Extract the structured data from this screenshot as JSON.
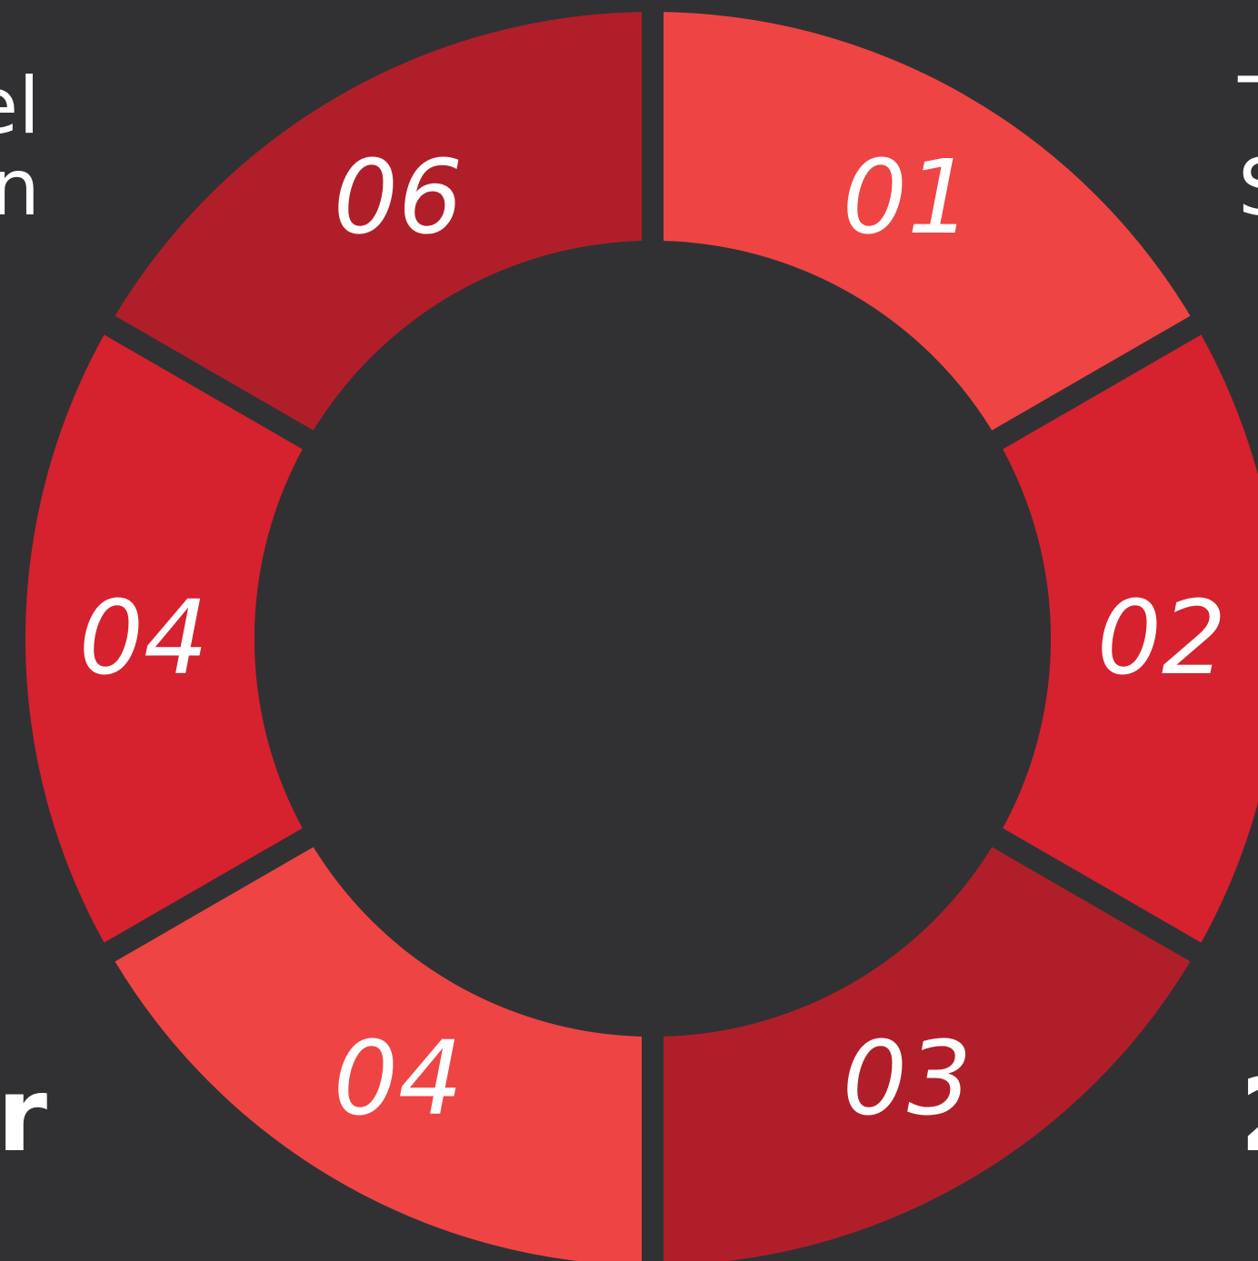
{
  "edge_text": {
    "left_top_line1": "el",
    "left_top_line2": "n",
    "left_bottom": "r",
    "right_top_line1": "T",
    "right_top_line2": "S",
    "right_bottom": "2"
  },
  "segments": [
    {
      "label": "01",
      "color": "#EF4444"
    },
    {
      "label": "02",
      "color": "#D6212E"
    },
    {
      "label": "03",
      "color": "#B01F29"
    },
    {
      "label": "04",
      "color": "#EF4444"
    },
    {
      "label": "04",
      "color": "#D6212E"
    },
    {
      "label": "06",
      "color": "#B01F29"
    }
  ],
  "colors": {
    "background": "#313133",
    "center": "#313133",
    "text": "#FFFFFF"
  }
}
